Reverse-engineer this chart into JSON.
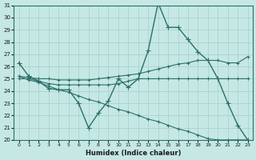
{
  "background_color": "#c5e8e5",
  "grid_color": "#a8cdc9",
  "line_color": "#2a7068",
  "xlim": [
    -0.5,
    23.5
  ],
  "ylim": [
    20,
    31
  ],
  "yticks": [
    20,
    21,
    22,
    23,
    24,
    25,
    26,
    27,
    28,
    29,
    30,
    31
  ],
  "xticks": [
    0,
    1,
    2,
    3,
    4,
    5,
    6,
    7,
    8,
    9,
    10,
    11,
    12,
    13,
    14,
    15,
    16,
    17,
    18,
    19,
    20,
    21,
    22,
    23
  ],
  "xlabel": "Humidex (Indice chaleur)",
  "series": [
    {
      "x": [
        0,
        1,
        2,
        3,
        4,
        5,
        6,
        7,
        8,
        9,
        10,
        11,
        12,
        13,
        14,
        15,
        16,
        17,
        18,
        19,
        20,
        21,
        22,
        23
      ],
      "y": [
        26.3,
        25.2,
        24.8,
        24.2,
        24.1,
        24.1,
        23.0,
        21.0,
        22.2,
        23.2,
        25.0,
        24.3,
        25.0,
        27.3,
        31.2,
        29.2,
        29.2,
        28.2,
        27.2,
        26.5,
        25.0,
        23.0,
        21.2,
        20.0
      ],
      "marker": "+",
      "markersize": 5,
      "linewidth": 1.0
    },
    {
      "x": [
        0,
        1,
        2,
        3,
        4,
        5,
        6,
        7,
        8,
        9,
        10,
        11,
        12,
        13,
        14,
        15,
        16,
        17,
        18,
        19,
        20,
        21,
        22,
        23
      ],
      "y": [
        25.2,
        25.1,
        25.0,
        25.0,
        24.9,
        24.9,
        24.9,
        24.9,
        25.0,
        25.1,
        25.2,
        25.3,
        25.4,
        25.6,
        25.8,
        26.0,
        26.2,
        26.3,
        26.5,
        26.5,
        26.5,
        26.3,
        26.3,
        26.8
      ],
      "marker": "+",
      "markersize": 3,
      "linewidth": 0.8
    },
    {
      "x": [
        0,
        1,
        2,
        3,
        4,
        5,
        6,
        7,
        8,
        9,
        10,
        11,
        12,
        13,
        14,
        15,
        16,
        17,
        18,
        19,
        20,
        21,
        22,
        23
      ],
      "y": [
        25.0,
        25.0,
        24.8,
        24.6,
        24.5,
        24.5,
        24.5,
        24.5,
        24.5,
        24.5,
        24.6,
        24.8,
        25.0,
        25.0,
        25.0,
        25.0,
        25.0,
        25.0,
        25.0,
        25.0,
        25.0,
        25.0,
        25.0,
        25.0
      ],
      "marker": "+",
      "markersize": 3,
      "linewidth": 0.8
    },
    {
      "x": [
        0,
        1,
        2,
        3,
        4,
        5,
        6,
        7,
        8,
        9,
        10,
        11,
        12,
        13,
        14,
        15,
        16,
        17,
        18,
        19,
        20,
        21,
        22,
        23
      ],
      "y": [
        25.2,
        24.9,
        24.7,
        24.4,
        24.1,
        23.9,
        23.6,
        23.3,
        23.1,
        22.8,
        22.5,
        22.3,
        22.0,
        21.7,
        21.5,
        21.2,
        20.9,
        20.7,
        20.4,
        20.1,
        20.0,
        20.0,
        20.0,
        20.0
      ],
      "marker": "+",
      "markersize": 3,
      "linewidth": 0.8
    }
  ]
}
